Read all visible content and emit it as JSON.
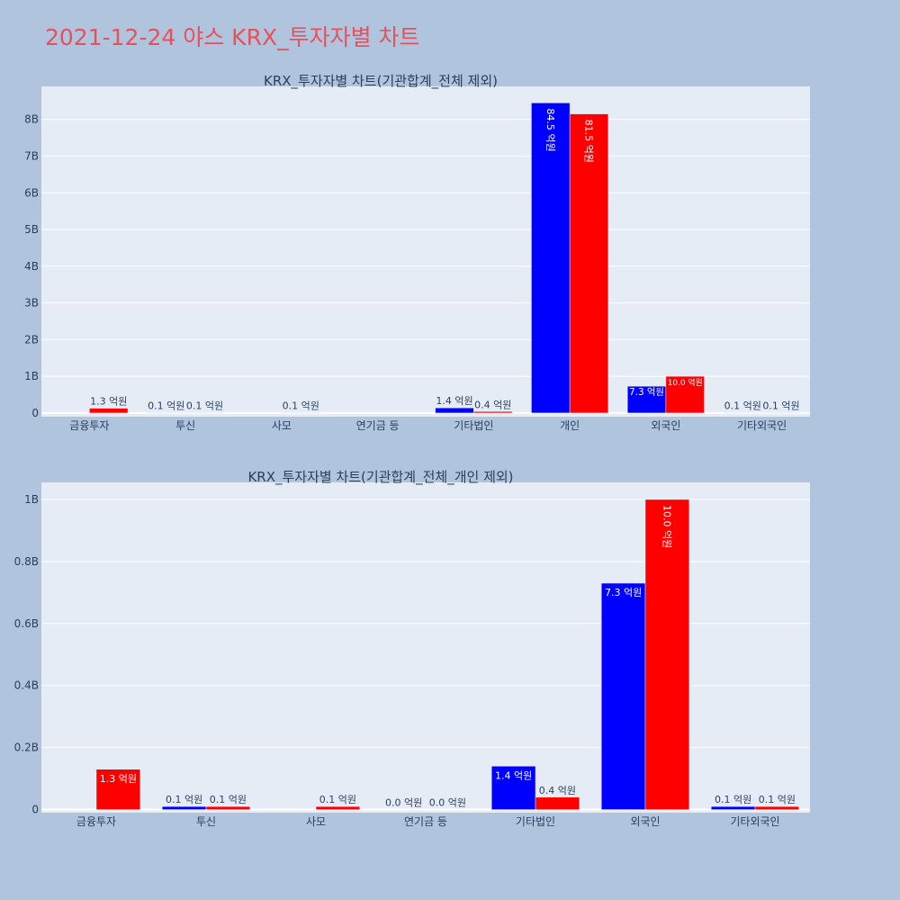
{
  "page_title": "2021-12-24 야스 KRX_투자자별 차트",
  "colors": {
    "series_1": "#0000ff",
    "series_2": "#ff0000",
    "plot_bg": "#e5ecf6",
    "page_bg": "#b0c4de"
  },
  "chart_data": [
    {
      "type": "bar",
      "title": "KRX_투자자별 차트(기관합계_전체 제외)",
      "categories": [
        "금융투자",
        "투신",
        "사모",
        "연기금 등",
        "기타법인",
        "개인",
        "외국인",
        "기타외국인"
      ],
      "yticks": [
        {
          "value": 0,
          "label": "0"
        },
        {
          "value": 1000000000,
          "label": "1B"
        },
        {
          "value": 2000000000,
          "label": "2B"
        },
        {
          "value": 3000000000,
          "label": "3B"
        },
        {
          "value": 4000000000,
          "label": "4B"
        },
        {
          "value": 5000000000,
          "label": "5B"
        },
        {
          "value": 6000000000,
          "label": "6B"
        },
        {
          "value": 7000000000,
          "label": "7B"
        },
        {
          "value": 8000000000,
          "label": "8B"
        }
      ],
      "ylim": [
        -100000000,
        8900000000
      ],
      "grid": true,
      "series": [
        {
          "color": "#0000ff",
          "values": [
            0,
            10000000,
            0,
            0,
            140000000,
            8450000000,
            730000000,
            10000000
          ],
          "labels": [
            "",
            "0.1 억원",
            "",
            "",
            "1.4 억원",
            "84.5 억원",
            "7.3 억원",
            "0.1 억원"
          ]
        },
        {
          "color": "#ff0000",
          "values": [
            130000000,
            10000000,
            10000000,
            0,
            40000000,
            8150000000,
            1000000000,
            10000000
          ],
          "labels": [
            "1.3 억원",
            "0.1 억원",
            "0.1 억원",
            "",
            "0.4 억원",
            "81.5 억원",
            "10.0 억원",
            "0.1 억원"
          ]
        }
      ]
    },
    {
      "type": "bar",
      "title": "KRX_투자자별 차트(기관합계_전체_개인 제외)",
      "categories": [
        "금융투자",
        "투신",
        "사모",
        "연기금 등",
        "기타법인",
        "외국인",
        "기타외국인"
      ],
      "yticks": [
        {
          "value": 0,
          "label": "0"
        },
        {
          "value": 200000000,
          "label": "0.2B"
        },
        {
          "value": 400000000,
          "label": "0.4B"
        },
        {
          "value": 600000000,
          "label": "0.6B"
        },
        {
          "value": 800000000,
          "label": "0.8B"
        },
        {
          "value": 1000000000,
          "label": "1B"
        }
      ],
      "ylim": [
        -10000000,
        1055000000
      ],
      "grid": true,
      "series": [
        {
          "color": "#0000ff",
          "values": [
            0,
            10000000,
            0,
            0,
            140000000,
            730000000,
            10000000
          ],
          "labels": [
            "",
            "0.1 억원",
            "",
            "0.0 억원",
            "1.4 억원",
            "7.3 억원",
            "0.1 억원"
          ]
        },
        {
          "color": "#ff0000",
          "values": [
            130000000,
            10000000,
            10000000,
            0,
            40000000,
            1000000000,
            10000000
          ],
          "labels": [
            "1.3 억원",
            "0.1 억원",
            "0.1 억원",
            "0.0 억원",
            "0.4 억원",
            "10.0 억원",
            "0.1 억원"
          ]
        }
      ]
    }
  ]
}
